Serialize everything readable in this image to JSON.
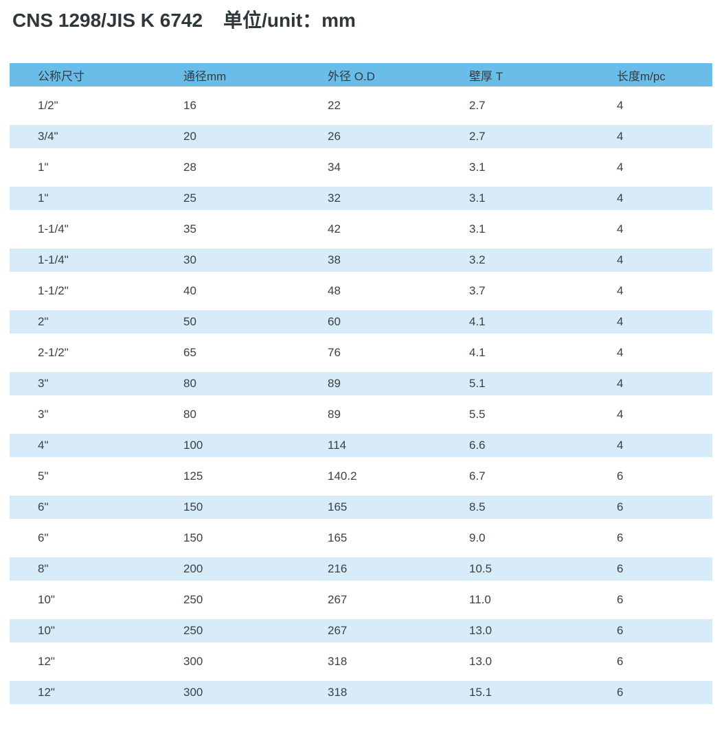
{
  "header": {
    "standard_code": "CNS 1298/JIS K 6742",
    "unit_label": "单位/unit：mm"
  },
  "colors": {
    "table_header_bg": "#6abde9",
    "row_band_bg": "#d7ebf8",
    "body_text": "#3a4145",
    "title_text": "#2e373c",
    "page_bg": "#ffffff"
  },
  "chart_data": {
    "type": "table",
    "title": "CNS 1298/JIS K 6742",
    "unit": "单位/unit：mm",
    "columns": [
      "公称尺寸",
      "通径mm",
      "外径 O.D",
      "壁厚 T",
      "长度m/pc"
    ],
    "rows": [
      [
        "1/2\"",
        "16",
        "22",
        "2.7",
        "4"
      ],
      [
        "3/4\"",
        "20",
        "26",
        "2.7",
        "4"
      ],
      [
        "1\"",
        "28",
        "34",
        "3.1",
        "4"
      ],
      [
        "1\"",
        "25",
        "32",
        "3.1",
        "4"
      ],
      [
        "1-1/4\"",
        "35",
        "42",
        "3.1",
        "4"
      ],
      [
        "1-1/4\"",
        "30",
        "38",
        "3.2",
        "4"
      ],
      [
        "1-1/2\"",
        "40",
        "48",
        "3.7",
        "4"
      ],
      [
        "2\"",
        "50",
        "60",
        "4.1",
        "4"
      ],
      [
        "2-1/2\"",
        "65",
        "76",
        "4.1",
        "4"
      ],
      [
        "3\"",
        "80",
        "89",
        "5.1",
        "4"
      ],
      [
        "3\"",
        "80",
        "89",
        "5.5",
        "4"
      ],
      [
        "4\"",
        "100",
        "114",
        "6.6",
        "4"
      ],
      [
        "5\"",
        "125",
        "140.2",
        "6.7",
        "6"
      ],
      [
        "6\"",
        "150",
        "165",
        "8.5",
        "6"
      ],
      [
        "6\"",
        "150",
        "165",
        "9.0",
        "6"
      ],
      [
        "8\"",
        "200",
        "216",
        "10.5",
        "6"
      ],
      [
        "10\"",
        "250",
        "267",
        "11.0",
        "6"
      ],
      [
        "10\"",
        "250",
        "267",
        "13.0",
        "6"
      ],
      [
        "12\"",
        "300",
        "318",
        "13.0",
        "6"
      ],
      [
        "12\"",
        "300",
        "318",
        "15.1",
        "6"
      ]
    ],
    "layout": {
      "banded_rows": "even rows (2nd, 4th, ...) shaded light blue",
      "grid": false,
      "column_alignment": "left"
    }
  }
}
